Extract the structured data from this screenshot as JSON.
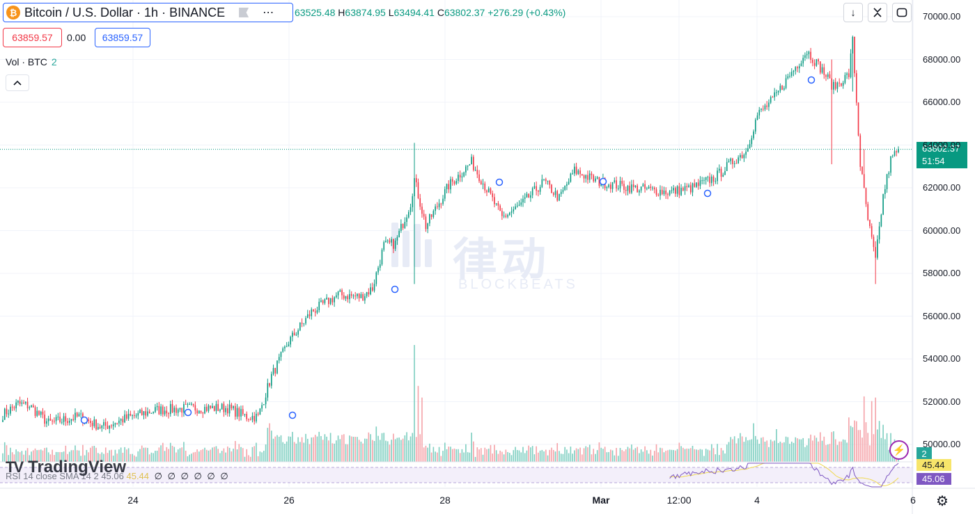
{
  "header": {
    "symbol_title": "Bitcoin / U.S. Dollar · 1h · BINANCE",
    "coin_glyph": "₿",
    "ohlc": {
      "open_label": "",
      "open": "63525.48",
      "high_label": "H",
      "high": "63874.95",
      "low_label": "L",
      "low": "63494.41",
      "close_label": "C",
      "close": "63802.37",
      "change": "+276.29 (+0.43%)"
    },
    "sell_price": "63859.57",
    "spread": "0.00",
    "buy_price": "63859.57"
  },
  "volume_legend": {
    "label": "Vol · BTC",
    "value": "2"
  },
  "top_controls": {
    "down_icon": "↓",
    "collapse_icon": "⌄⌃",
    "fullscreen_icon": "▭"
  },
  "last_price": {
    "price": "63802.37",
    "countdown": "51:54"
  },
  "volume_tag": "2",
  "rsi": {
    "legend": "RSI 14 close SMA 14 2",
    "value_text": "45.06",
    "ma_text": "45.44",
    "zeros": "∅ ∅ ∅ ∅ ∅ ∅",
    "value_tag": "45.06",
    "ma_tag": "45.44"
  },
  "branding": {
    "tv_logo": "TradingView",
    "watermark_cn": "律动",
    "watermark_en": "BLOCKBEATS"
  },
  "colors": {
    "up": "#089981",
    "down": "#f23645",
    "vol_up": "#7fcfc1",
    "vol_down": "#f5a3a9",
    "rsi": "#7e57c2",
    "rsi_ma": "#f0d94f"
  },
  "chart_data": {
    "type": "candlestick",
    "symbol": "BTCUSD",
    "interval": "1h",
    "y_axis": {
      "ticks": [
        "50000.00",
        "52000.00",
        "54000.00",
        "56000.00",
        "58000.00",
        "60000.00",
        "62000.00",
        "64000.00",
        "66000.00",
        "68000.00",
        "70000.00"
      ],
      "min": 49500,
      "max": 70500
    },
    "x_axis": {
      "ticks": [
        {
          "label": "24",
          "bold": false,
          "pos": 0.075
        },
        {
          "label": "26",
          "bold": false,
          "pos": 0.235
        },
        {
          "label": "28",
          "bold": false,
          "pos": 0.395
        },
        {
          "label": "Mar",
          "bold": true,
          "pos": 0.555
        },
        {
          "label": "12:00",
          "bold": false,
          "pos": 0.635
        },
        {
          "label": "4",
          "bold": false,
          "pos": 0.715
        },
        {
          "label": "6",
          "bold": false,
          "pos": 0.875
        }
      ]
    },
    "anchors": [
      {
        "t": 0,
        "price": 51400
      },
      {
        "t": 8,
        "price": 51900
      },
      {
        "t": 14,
        "price": 51800
      },
      {
        "t": 24,
        "price": 51000
      },
      {
        "t": 40,
        "price": 51300
      },
      {
        "t": 52,
        "price": 50800
      },
      {
        "t": 64,
        "price": 51200
      },
      {
        "t": 80,
        "price": 51600
      },
      {
        "t": 100,
        "price": 51700
      },
      {
        "t": 118,
        "price": 51700
      },
      {
        "t": 128,
        "price": 51300
      },
      {
        "t": 134,
        "price": 51300
      },
      {
        "t": 141,
        "price": 53200
      },
      {
        "t": 150,
        "price": 54800
      },
      {
        "t": 162,
        "price": 56200
      },
      {
        "t": 176,
        "price": 57000
      },
      {
        "t": 188,
        "price": 56900
      },
      {
        "t": 194,
        "price": 57300
      },
      {
        "t": 200,
        "price": 59300
      },
      {
        "t": 206,
        "price": 59400
      },
      {
        "t": 214,
        "price": 61300
      },
      {
        "t": 216,
        "price": 62400
      },
      {
        "t": 222,
        "price": 60200
      },
      {
        "t": 234,
        "price": 62100
      },
      {
        "t": 246,
        "price": 63200
      },
      {
        "t": 256,
        "price": 61600
      },
      {
        "t": 262,
        "price": 60600
      },
      {
        "t": 272,
        "price": 61200
      },
      {
        "t": 284,
        "price": 62300
      },
      {
        "t": 292,
        "price": 61500
      },
      {
        "t": 300,
        "price": 62800
      },
      {
        "t": 312,
        "price": 62300
      },
      {
        "t": 330,
        "price": 62000
      },
      {
        "t": 350,
        "price": 61800
      },
      {
        "t": 362,
        "price": 62000
      },
      {
        "t": 374,
        "price": 62500
      },
      {
        "t": 384,
        "price": 63300
      },
      {
        "t": 390,
        "price": 63700
      },
      {
        "t": 396,
        "price": 65400
      },
      {
        "t": 404,
        "price": 66100
      },
      {
        "t": 414,
        "price": 67400
      },
      {
        "t": 422,
        "price": 68400
      },
      {
        "t": 430,
        "price": 67500
      },
      {
        "t": 436,
        "price": 66700
      },
      {
        "t": 444,
        "price": 67300
      },
      {
        "t": 446,
        "price": 68900
      },
      {
        "t": 450,
        "price": 63100
      },
      {
        "t": 454,
        "price": 60500
      },
      {
        "t": 458,
        "price": 58600
      },
      {
        "t": 462,
        "price": 61600
      },
      {
        "t": 466,
        "price": 63300
      },
      {
        "t": 470,
        "price": 63800
      }
    ],
    "spikes": [
      {
        "t": 216,
        "high": 64100,
        "low": 57500
      },
      {
        "t": 435,
        "high": 68000,
        "low": 63100
      },
      {
        "t": 446,
        "high": 69100,
        "low": 66500
      },
      {
        "t": 452,
        "high": 63800,
        "low": 62200
      },
      {
        "t": 458,
        "high": 59500,
        "low": 57500
      }
    ],
    "volume_spikes": [
      {
        "t": 140,
        "v": 0.33
      },
      {
        "t": 216,
        "v": 1.0
      },
      {
        "t": 218,
        "v": 0.65
      },
      {
        "t": 220,
        "v": 0.55
      },
      {
        "t": 246,
        "v": 0.25
      },
      {
        "t": 394,
        "v": 0.33
      },
      {
        "t": 406,
        "v": 0.28
      },
      {
        "t": 444,
        "v": 0.38
      },
      {
        "t": 452,
        "v": 0.56
      },
      {
        "t": 456,
        "v": 0.52
      },
      {
        "t": 458,
        "v": 0.55
      },
      {
        "t": 460,
        "v": 0.35
      }
    ],
    "last_price": 63802.37,
    "series_length": 471
  }
}
